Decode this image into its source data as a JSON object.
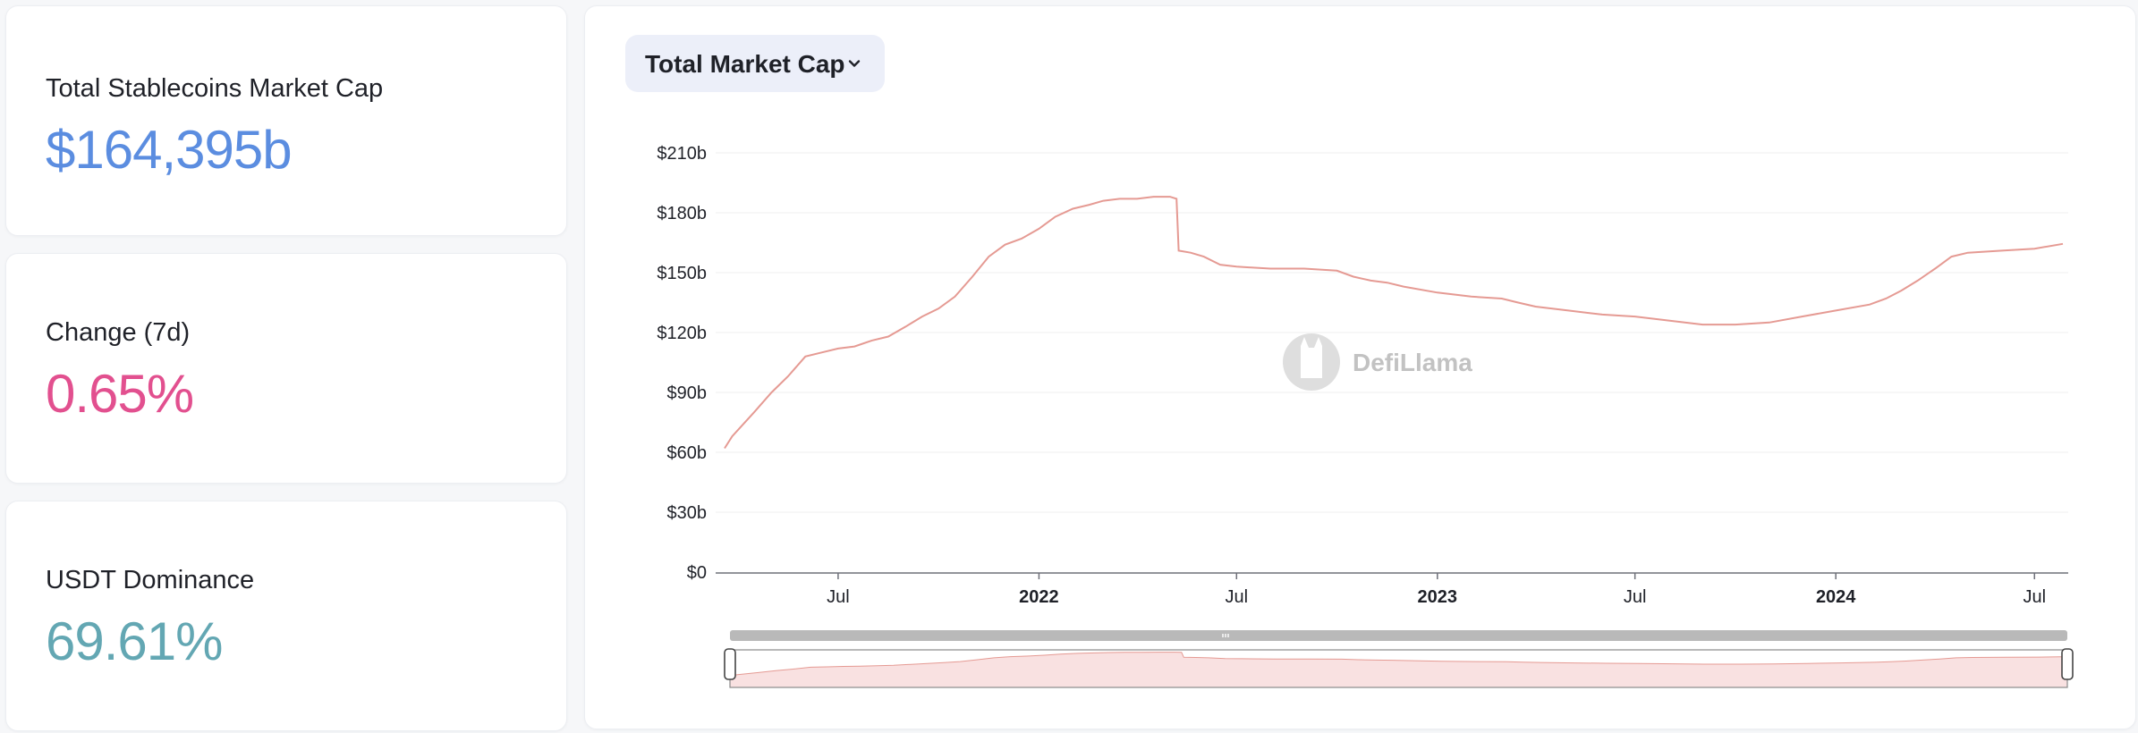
{
  "stats": {
    "market_cap": {
      "label": "Total Stablecoins Market Cap",
      "value": "$164,395b",
      "color": "#5b8de0"
    },
    "change": {
      "label": "Change (7d)",
      "value": "0.65%",
      "color": "#e2508f"
    },
    "dominance": {
      "label": "USDT Dominance",
      "value": "69.61%",
      "color": "#63a7b3"
    }
  },
  "chart_header": {
    "dropdown_label": "Total Market Cap",
    "dropdown_icon": "chevron-down-icon"
  },
  "watermark": {
    "text": "DefiLlama",
    "icon": "llama-logo-icon"
  },
  "colors": {
    "line": "#e59a93",
    "fill": "#f9e1e1",
    "grid": "#efefef"
  },
  "chart_data": {
    "type": "line",
    "title": "",
    "xlabel": "",
    "ylabel": "",
    "ylim": [
      0,
      210
    ],
    "y_unit": "b",
    "y_ticks": [
      0,
      30,
      60,
      90,
      120,
      150,
      180,
      210
    ],
    "y_tick_labels": [
      "$0",
      "$30b",
      "$60b",
      "$90b",
      "$120b",
      "$150b",
      "$180b",
      "$210b"
    ],
    "xlim": [
      "2021-03-19",
      "2024-07-27"
    ],
    "x_ticks": [
      {
        "date": "2021-07-01",
        "label": "Jul",
        "bold": false
      },
      {
        "date": "2022-01-01",
        "label": "2022",
        "bold": true
      },
      {
        "date": "2022-07-01",
        "label": "Jul",
        "bold": false
      },
      {
        "date": "2023-01-01",
        "label": "2023",
        "bold": true
      },
      {
        "date": "2023-07-01",
        "label": "Jul",
        "bold": false
      },
      {
        "date": "2024-01-01",
        "label": "2024",
        "bold": true
      },
      {
        "date": "2024-07-01",
        "label": "Jul",
        "bold": false
      }
    ],
    "grid": true,
    "series": [
      {
        "points": [
          [
            "2021-03-19",
            62
          ],
          [
            "2021-03-26",
            68
          ],
          [
            "2021-04-05",
            74
          ],
          [
            "2021-04-15",
            80
          ],
          [
            "2021-05-01",
            90
          ],
          [
            "2021-05-16",
            98
          ],
          [
            "2021-06-01",
            108
          ],
          [
            "2021-06-16",
            110
          ],
          [
            "2021-07-01",
            112
          ],
          [
            "2021-07-16",
            113
          ],
          [
            "2021-08-01",
            116
          ],
          [
            "2021-08-16",
            118
          ],
          [
            "2021-09-01",
            123
          ],
          [
            "2021-09-16",
            128
          ],
          [
            "2021-10-01",
            132
          ],
          [
            "2021-10-16",
            138
          ],
          [
            "2021-11-01",
            148
          ],
          [
            "2021-11-16",
            158
          ],
          [
            "2021-12-01",
            164
          ],
          [
            "2021-12-16",
            167
          ],
          [
            "2022-01-01",
            172
          ],
          [
            "2022-01-16",
            178
          ],
          [
            "2022-02-01",
            182
          ],
          [
            "2022-02-16",
            184
          ],
          [
            "2022-03-01",
            186
          ],
          [
            "2022-03-16",
            187
          ],
          [
            "2022-04-01",
            187
          ],
          [
            "2022-04-16",
            188
          ],
          [
            "2022-05-01",
            188
          ],
          [
            "2022-05-07",
            187
          ],
          [
            "2022-05-09",
            161
          ],
          [
            "2022-05-20",
            160
          ],
          [
            "2022-06-01",
            158
          ],
          [
            "2022-06-16",
            154
          ],
          [
            "2022-07-01",
            153
          ],
          [
            "2022-08-01",
            152
          ],
          [
            "2022-09-01",
            152
          ],
          [
            "2022-10-01",
            151
          ],
          [
            "2022-10-16",
            148
          ],
          [
            "2022-11-01",
            146
          ],
          [
            "2022-11-16",
            145
          ],
          [
            "2022-12-01",
            143
          ],
          [
            "2023-01-01",
            140
          ],
          [
            "2023-02-01",
            138
          ],
          [
            "2023-03-01",
            137
          ],
          [
            "2023-03-16",
            135
          ],
          [
            "2023-04-01",
            133
          ],
          [
            "2023-05-01",
            131
          ],
          [
            "2023-06-01",
            129
          ],
          [
            "2023-07-01",
            128
          ],
          [
            "2023-08-01",
            126
          ],
          [
            "2023-09-01",
            124
          ],
          [
            "2023-10-01",
            124
          ],
          [
            "2023-11-01",
            125
          ],
          [
            "2023-12-01",
            128
          ],
          [
            "2024-01-01",
            131
          ],
          [
            "2024-02-01",
            134
          ],
          [
            "2024-02-16",
            137
          ],
          [
            "2024-03-01",
            141
          ],
          [
            "2024-03-16",
            146
          ],
          [
            "2024-04-01",
            152
          ],
          [
            "2024-04-16",
            158
          ],
          [
            "2024-05-01",
            160
          ],
          [
            "2024-06-01",
            161
          ],
          [
            "2024-07-01",
            162
          ],
          [
            "2024-07-27",
            164.4
          ]
        ]
      }
    ]
  }
}
